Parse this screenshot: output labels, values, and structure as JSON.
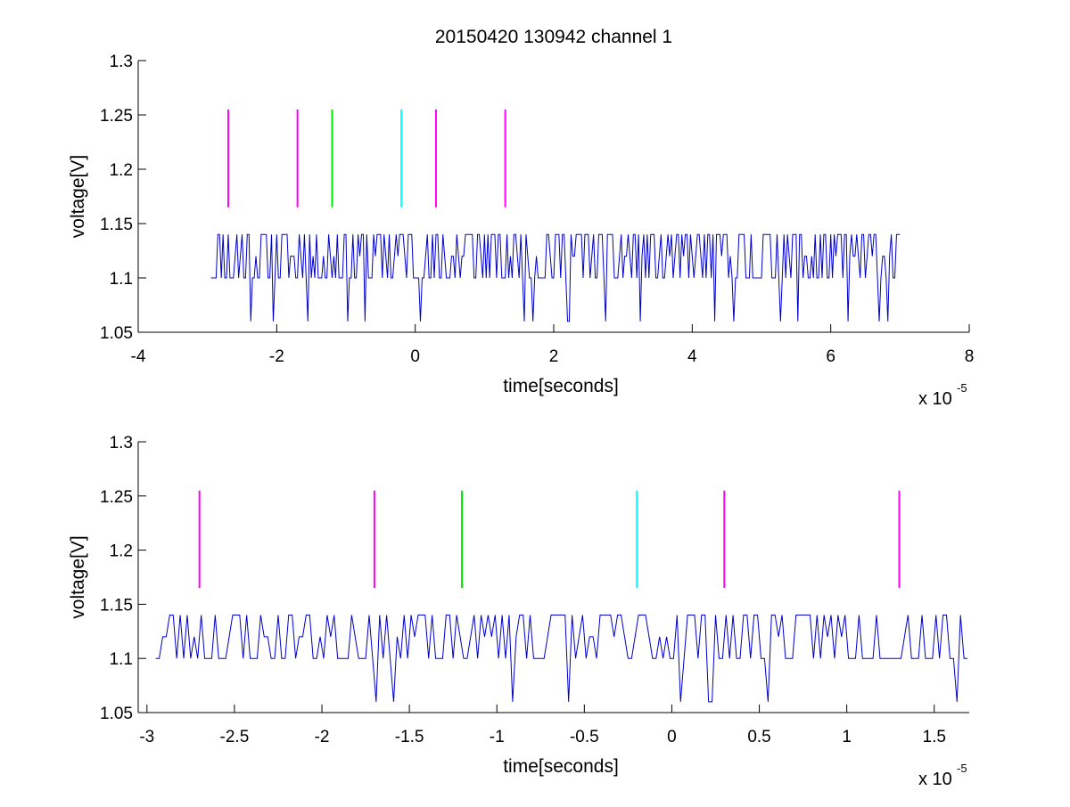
{
  "chart_data": [
    {
      "type": "line",
      "title": "20150420 130942 channel 1",
      "xlabel": "time[seconds]",
      "ylabel": "voltage[V]",
      "x_multiplier": "x 10",
      "x_multiplier_exponent": "-5",
      "x_unit_scale": 1e-05,
      "xlim": [
        -4,
        8
      ],
      "ylim": [
        1.05,
        1.3
      ],
      "xticks": [
        -4,
        -2,
        0,
        2,
        4,
        6,
        8
      ],
      "xtick_labels": [
        "-4",
        "-2",
        "0",
        "2",
        "4",
        "6",
        "8"
      ],
      "yticks": [
        1.05,
        1.1,
        1.15,
        1.2,
        1.25,
        1.3
      ],
      "ytick_labels": [
        "1.05",
        "1.1",
        "1.15",
        "1.2",
        "1.25",
        "1.3"
      ],
      "grid": false,
      "series": [
        {
          "kind": "signal",
          "color": "#0000cc",
          "x_range": [
            -2.95,
            7.0
          ],
          "levels": [
            1.06,
            1.1,
            1.12,
            1.14
          ],
          "seed": 11
        },
        {
          "kind": "markers",
          "y_range": [
            1.165,
            1.255
          ],
          "markers": [
            {
              "x": -2.7,
              "color": "#ff00ff"
            },
            {
              "x": -1.7,
              "color": "#ff00ff"
            },
            {
              "x": -1.2,
              "color": "#00ee00"
            },
            {
              "x": -0.2,
              "color": "#00ffff"
            },
            {
              "x": 0.3,
              "color": "#ff00ff"
            },
            {
              "x": 1.3,
              "color": "#ff00ff"
            }
          ]
        }
      ]
    },
    {
      "type": "line",
      "title": "",
      "xlabel": "time[seconds]",
      "ylabel": "voltage[V]",
      "x_multiplier": "x 10",
      "x_multiplier_exponent": "-5",
      "x_unit_scale": 1e-05,
      "xlim": [
        -3.05,
        1.7
      ],
      "ylim": [
        1.05,
        1.3
      ],
      "xticks": [
        -3,
        -2.5,
        -2,
        -1.5,
        -1,
        -0.5,
        0,
        0.5,
        1,
        1.5
      ],
      "xtick_labels": [
        "-3",
        "-2.5",
        "-2",
        "-1.5",
        "-1",
        "-0.5",
        "0",
        "0.5",
        "1",
        "1.5"
      ],
      "yticks": [
        1.05,
        1.1,
        1.15,
        1.2,
        1.25,
        1.3
      ],
      "ytick_labels": [
        "1.05",
        "1.1",
        "1.15",
        "1.2",
        "1.25",
        "1.3"
      ],
      "grid": false,
      "series": [
        {
          "kind": "signal",
          "color": "#0000cc",
          "x_range": [
            -2.95,
            1.7
          ],
          "levels": [
            1.06,
            1.1,
            1.12,
            1.14
          ],
          "seed": 23
        },
        {
          "kind": "markers",
          "y_range": [
            1.165,
            1.255
          ],
          "markers": [
            {
              "x": -2.7,
              "color": "#ff00ff"
            },
            {
              "x": -1.7,
              "color": "#ff00ff"
            },
            {
              "x": -1.2,
              "color": "#00ee00"
            },
            {
              "x": -0.2,
              "color": "#00ffff"
            },
            {
              "x": 0.3,
              "color": "#ff00ff"
            },
            {
              "x": 1.3,
              "color": "#ff00ff"
            }
          ]
        }
      ]
    }
  ]
}
